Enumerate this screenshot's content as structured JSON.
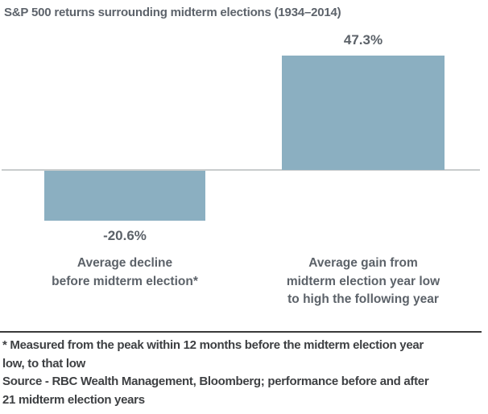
{
  "chart_data": {
    "type": "bar",
    "title": "S&P 500 returns surrounding midterm elections (1934–2014)",
    "categories": [
      "Average decline before midterm election*",
      "Average gain from midterm election year low to high the following year"
    ],
    "categories_lines": [
      [
        "Average decline",
        "before midterm election*"
      ],
      [
        "Average gain from",
        "midterm election year low",
        "to high the following year"
      ]
    ],
    "values": [
      -20.6,
      47.3
    ],
    "value_labels": [
      "-20.6%",
      "47.3%"
    ],
    "xlabel": "",
    "ylabel": "",
    "ylim": [
      -25,
      50
    ],
    "grid": "off",
    "legend": "none",
    "bar_color": "#8bafc1",
    "baseline": "zero axis line shown full width"
  },
  "footnote": {
    "lines": [
      "* Measured from the peak within 12 months before the midterm election year",
      "low, to that low",
      "Source - RBC Wealth Management, Bloomberg; performance before and after",
      "21 midterm election years"
    ]
  }
}
